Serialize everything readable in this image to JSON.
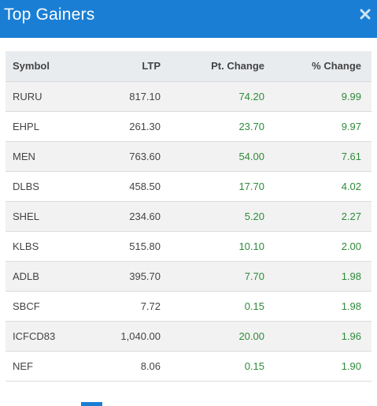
{
  "modal": {
    "title": "Top Gainers",
    "close_icon": "close-icon",
    "accent_color": "#1a7fd4"
  },
  "table": {
    "headers": {
      "symbol": "Symbol",
      "ltp": "LTP",
      "pt_change": "Pt. Change",
      "pct_change": "% Change"
    },
    "positive_color": "#2e8b3a",
    "rows": [
      {
        "symbol": "RURU",
        "ltp": "817.10",
        "pt_change": "74.20",
        "pct_change": "9.99"
      },
      {
        "symbol": "EHPL",
        "ltp": "261.30",
        "pt_change": "23.70",
        "pct_change": "9.97"
      },
      {
        "symbol": "MEN",
        "ltp": "763.60",
        "pt_change": "54.00",
        "pct_change": "7.61"
      },
      {
        "symbol": "DLBS",
        "ltp": "458.50",
        "pt_change": "17.70",
        "pct_change": "4.02"
      },
      {
        "symbol": "SHEL",
        "ltp": "234.60",
        "pt_change": "5.20",
        "pct_change": "2.27"
      },
      {
        "symbol": "KLBS",
        "ltp": "515.80",
        "pt_change": "10.10",
        "pct_change": "2.00"
      },
      {
        "symbol": "ADLB",
        "ltp": "395.70",
        "pt_change": "7.70",
        "pct_change": "1.98"
      },
      {
        "symbol": "SBCF",
        "ltp": "7.72",
        "pt_change": "0.15",
        "pct_change": "1.98"
      },
      {
        "symbol": "ICFCD83",
        "ltp": "1,040.00",
        "pt_change": "20.00",
        "pct_change": "1.96"
      },
      {
        "symbol": "NEF",
        "ltp": "8.06",
        "pt_change": "0.15",
        "pct_change": "1.90"
      }
    ]
  }
}
